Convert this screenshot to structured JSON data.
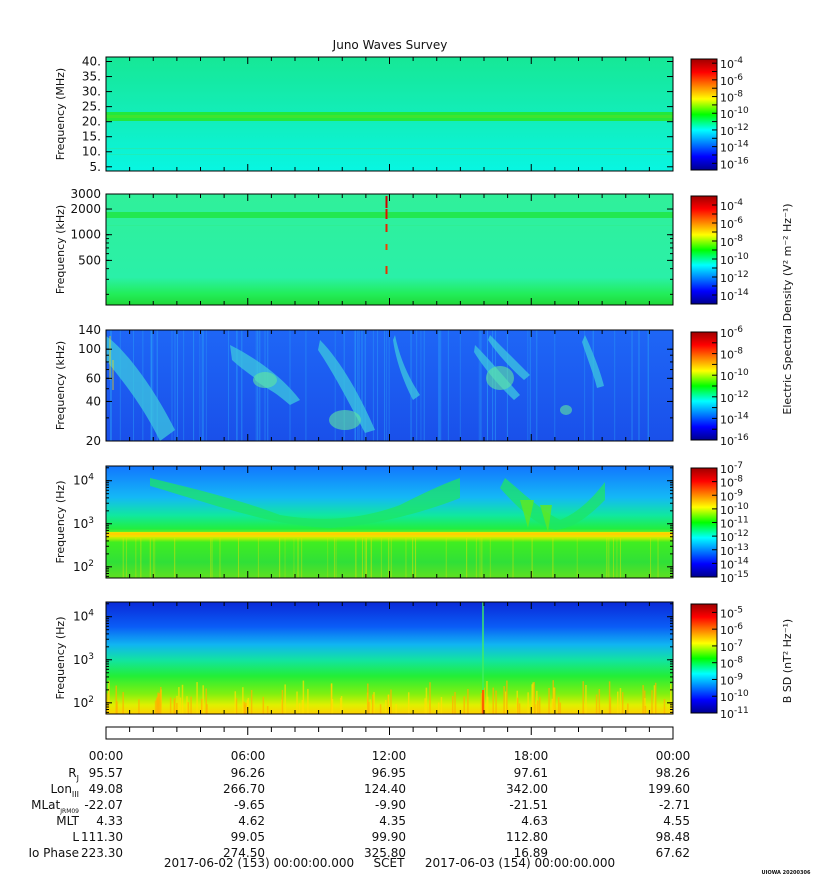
{
  "title": "Juno Waves Survey",
  "panels": [
    {
      "ylabel": "Frequency (MHz)",
      "scale": "linear",
      "ylim": [
        3.6,
        41.5
      ],
      "yticks": [
        {
          "v": 5,
          "t": "5."
        },
        {
          "v": 10,
          "t": "10."
        },
        {
          "v": 15,
          "t": "15."
        },
        {
          "v": 20,
          "t": "20."
        },
        {
          "v": 25,
          "t": "25."
        },
        {
          "v": 30,
          "t": "30."
        },
        {
          "v": 35,
          "t": "35."
        },
        {
          "v": 40,
          "t": "40."
        }
      ],
      "colorbar": {
        "exponents": [
          "-4",
          "-6",
          "-8",
          "-10",
          "-12",
          "-14",
          "-16"
        ],
        "range": [
          -16.8,
          -3.5
        ],
        "label": ""
      }
    },
    {
      "ylabel": "Frequency (kHz)",
      "scale": "log",
      "ylim": [
        150,
        3000
      ],
      "yticks": [
        {
          "v": 3000,
          "t": "3000"
        },
        {
          "v": 2000,
          "t": "2000"
        },
        {
          "v": 1000,
          "t": "1000"
        },
        {
          "v": 500,
          "t": "500"
        }
      ],
      "colorbar": {
        "exponents": [
          "-4",
          "-6",
          "-8",
          "-10",
          "-12",
          "-14"
        ],
        "range": [
          -15,
          -3
        ],
        "label": "Electric Spectral Density (V² m⁻² Hz⁻¹)"
      }
    },
    {
      "ylabel": "Frequency (kHz)",
      "scale": "log",
      "ylim": [
        20,
        140
      ],
      "yticks": [
        {
          "v": 140,
          "t": "140"
        },
        {
          "v": 100,
          "t": "100"
        },
        {
          "v": 60,
          "t": "60"
        },
        {
          "v": 40,
          "t": "40"
        },
        {
          "v": 20,
          "t": "20"
        }
      ],
      "colorbar": {
        "exponents": [
          "-6",
          "-8",
          "-10",
          "-12",
          "-14",
          "-16"
        ],
        "range": [
          -16,
          -6
        ],
        "label": ""
      }
    },
    {
      "ylabel": "Frequency (Hz)",
      "scale": "log",
      "ylim": [
        55,
        22000
      ],
      "yticks": [
        {
          "v": 10000,
          "t": "10",
          "sup": "4"
        },
        {
          "v": 1000,
          "t": "10",
          "sup": "3"
        },
        {
          "v": 100,
          "t": "10",
          "sup": "2"
        }
      ],
      "colorbar": {
        "exponents": [
          "-7",
          "-8",
          "-9",
          "-10",
          "-11",
          "-12",
          "-13",
          "-14",
          "-15"
        ],
        "range": [
          -15,
          -7
        ],
        "label": ""
      }
    },
    {
      "ylabel": "Frequency (Hz)",
      "scale": "log",
      "ylim": [
        55,
        22000
      ],
      "yticks": [
        {
          "v": 10000,
          "t": "10",
          "sup": "4"
        },
        {
          "v": 1000,
          "t": "10",
          "sup": "3"
        },
        {
          "v": 100,
          "t": "10",
          "sup": "2"
        }
      ],
      "colorbar": {
        "exponents": [
          "-5",
          "-6",
          "-7",
          "-8",
          "-9",
          "-10",
          "-11"
        ],
        "range": [
          -11,
          -4.5
        ],
        "label": "B SD (nT² Hz⁻¹)"
      }
    }
  ],
  "time_labels": [
    "00:00",
    "06:00",
    "12:00",
    "18:00",
    "00:00"
  ],
  "ephemeris": [
    {
      "label": "R",
      "sub": "J",
      "values": [
        "95.57",
        "96.26",
        "96.95",
        "97.61",
        "98.26"
      ]
    },
    {
      "label": "Lon",
      "sub": "III",
      "values": [
        "49.08",
        "266.70",
        "124.40",
        "342.00",
        "199.60"
      ]
    },
    {
      "label": "MLat",
      "sub": "JRM09",
      "values": [
        "-22.07",
        "-9.65",
        "-9.90",
        "-21.51",
        "-2.71"
      ]
    },
    {
      "label": "MLT",
      "sub": "",
      "values": [
        "4.33",
        "4.62",
        "4.35",
        "4.63",
        "4.55"
      ]
    },
    {
      "label": "L",
      "sub": "",
      "values": [
        "111.30",
        "99.05",
        "99.90",
        "112.80",
        "98.48"
      ]
    },
    {
      "label": "Io Phase",
      "sub": "",
      "values": [
        "223.30",
        "274.50",
        "325.80",
        "16.89",
        "67.62"
      ]
    }
  ],
  "footer": {
    "start": "2017-06-02 (153) 00:00:00.000",
    "axis": "SCET",
    "end": "2017-06-03 (154) 00:00:00.000"
  },
  "stamp": "UIOWA 20200306",
  "chart_data": {
    "type": "heatmap",
    "title": "Juno Waves Survey",
    "x_range": [
      "2017-06-02 00:00",
      "2017-06-03 00:00"
    ],
    "panels": [
      {
        "ylabel": "Frequency (MHz)",
        "ylim": [
          3.6,
          41.5
        ],
        "scale": "linear",
        "colorbar_exponents": [
          -4,
          -16
        ],
        "background_level": -11.5,
        "features": [
          {
            "type": "band",
            "freq_MHz": 21,
            "level": -10.8
          }
        ]
      },
      {
        "ylabel": "Frequency (kHz)",
        "ylim": [
          150,
          3000
        ],
        "scale": "log",
        "colorbar_exponents": [
          -4,
          -14
        ],
        "background_level": -11.6,
        "features": [
          {
            "type": "band",
            "freq_kHz": 1600,
            "level": -10.6
          },
          {
            "type": "spike",
            "time": "11:50",
            "level": -4
          }
        ]
      },
      {
        "ylabel": "Frequency (kHz)",
        "ylim": [
          20,
          140
        ],
        "scale": "log",
        "colorbar_exponents": [
          -6,
          -16
        ],
        "background_level": -13.8
      },
      {
        "ylabel": "Frequency (Hz)",
        "ylim": [
          55,
          22000
        ],
        "scale": "log",
        "colorbar_exponents": [
          -7,
          -15
        ],
        "background_level": -12.5,
        "features": [
          {
            "type": "band",
            "freq_Hz": 560,
            "level": -8.5
          }
        ]
      },
      {
        "ylabel": "Frequency (Hz)",
        "ylim": [
          55,
          22000
        ],
        "scale": "log",
        "colorbar_exponents": [
          -5,
          -11
        ],
        "background_level": -8.5,
        "features": [
          {
            "type": "spike",
            "time": "16:00",
            "level": -4.5
          }
        ]
      }
    ]
  }
}
